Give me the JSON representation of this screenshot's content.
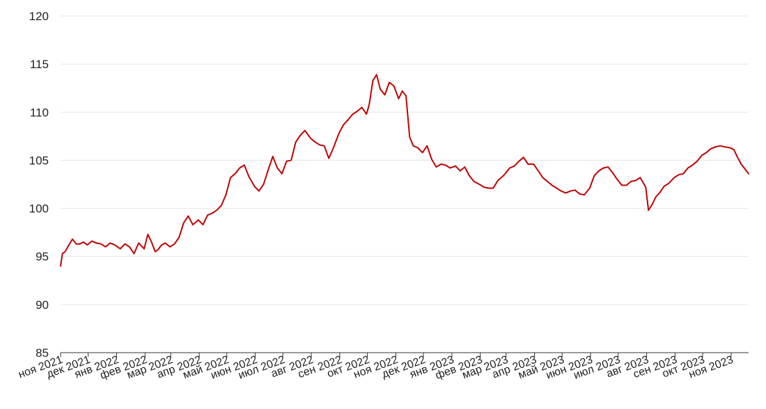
{
  "chart_data": {
    "type": "line",
    "title": "",
    "xlabel": "",
    "ylabel": "",
    "ylim": [
      85,
      120
    ],
    "yticks": [
      85,
      90,
      95,
      100,
      105,
      110,
      115,
      120
    ],
    "grid": true,
    "legend": "none",
    "line_color": "#c00000",
    "x_tick_labels": [
      "ноя 2021",
      "дек 2021",
      "янв 2022",
      "фев 2022",
      "мар 2022",
      "апр 2022",
      "май 2022",
      "июн 2022",
      "июл 2022",
      "авг 2022",
      "сен 2022",
      "окт 2022",
      "ноя 2022",
      "дек 2022",
      "янв 2023",
      "фев 2023",
      "мар 2023",
      "апр 2023",
      "май 2023",
      "июн 2023",
      "июл 2023",
      "авг 2023",
      "сен 2023",
      "окт 2023",
      "ноя 2023"
    ],
    "x_start": "2021-11-01",
    "x_end": "2023-11-20",
    "series": [
      {
        "dates": [
          "2021-11-01",
          "2021-11-03",
          "2021-11-06",
          "2021-11-10",
          "2021-11-14",
          "2021-11-18",
          "2021-11-22",
          "2021-11-26",
          "2021-11-30",
          "2021-12-05",
          "2021-12-10",
          "2021-12-15",
          "2021-12-20",
          "2021-12-25",
          "2021-12-30",
          "2022-01-05",
          "2022-01-10",
          "2022-01-15",
          "2022-01-20",
          "2022-01-25",
          "2022-01-31",
          "2022-02-04",
          "2022-02-08",
          "2022-02-12",
          "2022-02-15",
          "2022-02-19",
          "2022-02-23",
          "2022-02-28",
          "2022-03-05",
          "2022-03-10",
          "2022-03-15",
          "2022-03-20",
          "2022-03-25",
          "2022-03-31",
          "2022-04-05",
          "2022-04-10",
          "2022-04-15",
          "2022-04-20",
          "2022-04-25",
          "2022-04-30",
          "2022-05-05",
          "2022-05-10",
          "2022-05-15",
          "2022-05-20",
          "2022-05-25",
          "2022-05-31",
          "2022-06-05",
          "2022-06-10",
          "2022-06-15",
          "2022-06-20",
          "2022-06-25",
          "2022-06-30",
          "2022-07-05",
          "2022-07-10",
          "2022-07-15",
          "2022-07-20",
          "2022-07-25",
          "2022-07-31",
          "2022-08-05",
          "2022-08-10",
          "2022-08-15",
          "2022-08-20",
          "2022-08-25",
          "2022-08-31",
          "2022-09-05",
          "2022-09-10",
          "2022-09-15",
          "2022-09-20",
          "2022-09-25",
          "2022-09-30",
          "2022-10-03",
          "2022-10-07",
          "2022-10-11",
          "2022-10-15",
          "2022-10-20",
          "2022-10-25",
          "2022-10-30",
          "2022-11-04",
          "2022-11-08",
          "2022-11-12",
          "2022-11-16",
          "2022-11-20",
          "2022-11-25",
          "2022-11-30",
          "2022-12-05",
          "2022-12-10",
          "2022-12-15",
          "2022-12-20",
          "2022-12-25",
          "2022-12-30",
          "2023-01-05",
          "2023-01-10",
          "2023-01-15",
          "2023-01-20",
          "2023-01-25",
          "2023-01-31",
          "2023-02-05",
          "2023-02-10",
          "2023-02-15",
          "2023-02-20",
          "2023-02-25",
          "2023-02-28",
          "2023-03-05",
          "2023-03-10",
          "2023-03-15",
          "2023-03-20",
          "2023-03-25",
          "2023-03-31",
          "2023-04-05",
          "2023-04-10",
          "2023-04-15",
          "2023-04-20",
          "2023-04-25",
          "2023-04-30",
          "2023-05-05",
          "2023-05-10",
          "2023-05-15",
          "2023-05-20",
          "2023-05-25",
          "2023-05-31",
          "2023-06-05",
          "2023-06-10",
          "2023-06-15",
          "2023-06-20",
          "2023-06-25",
          "2023-06-30",
          "2023-07-05",
          "2023-07-10",
          "2023-07-15",
          "2023-07-20",
          "2023-07-25",
          "2023-07-31",
          "2023-08-03",
          "2023-08-07",
          "2023-08-11",
          "2023-08-15",
          "2023-08-20",
          "2023-08-25",
          "2023-08-31",
          "2023-09-05",
          "2023-09-10",
          "2023-09-15",
          "2023-09-20",
          "2023-09-25",
          "2023-09-30",
          "2023-10-05",
          "2023-10-10",
          "2023-10-15",
          "2023-10-20",
          "2023-10-25",
          "2023-10-31",
          "2023-11-04",
          "2023-11-08",
          "2023-11-12",
          "2023-11-16",
          "2023-11-20"
        ],
        "values": [
          94.0,
          95.3,
          95.5,
          96.2,
          96.8,
          96.3,
          96.3,
          96.5,
          96.2,
          96.6,
          96.4,
          96.3,
          96.0,
          96.4,
          96.2,
          95.8,
          96.3,
          96.0,
          95.3,
          96.4,
          95.8,
          97.3,
          96.5,
          95.5,
          95.7,
          96.2,
          96.4,
          96.0,
          96.3,
          97.0,
          98.5,
          99.2,
          98.3,
          98.8,
          98.3,
          99.3,
          99.5,
          99.8,
          100.3,
          101.4,
          103.2,
          103.6,
          104.2,
          104.5,
          103.3,
          102.3,
          101.8,
          102.5,
          104.0,
          105.4,
          104.2,
          103.6,
          104.9,
          105.0,
          106.9,
          107.6,
          108.1,
          107.3,
          106.9,
          106.6,
          106.5,
          105.2,
          106.3,
          107.8,
          108.7,
          109.2,
          109.8,
          110.1,
          110.5,
          109.8,
          110.8,
          113.3,
          113.9,
          112.4,
          111.8,
          113.1,
          112.7,
          111.4,
          112.2,
          111.7,
          107.4,
          106.5,
          106.3,
          105.8,
          106.5,
          105.1,
          104.3,
          104.6,
          104.5,
          104.2,
          104.4,
          103.9,
          104.3,
          103.4,
          102.8,
          102.5,
          102.2,
          102.1,
          102.1,
          102.9,
          103.3,
          103.6,
          104.2,
          104.4,
          104.9,
          105.3,
          104.6,
          104.6,
          103.9,
          103.2,
          102.8,
          102.4,
          102.1,
          101.8,
          101.6,
          101.8,
          101.9,
          101.5,
          101.4,
          102.1,
          103.4,
          103.9,
          104.2,
          104.3,
          103.7,
          103.0,
          102.4,
          102.4,
          102.8,
          102.9,
          103.2,
          102.2,
          99.8,
          100.4,
          101.2,
          101.6,
          102.3,
          102.6,
          103.2,
          103.5,
          103.6,
          104.2,
          104.5,
          104.9,
          105.5,
          105.8,
          106.2,
          106.4,
          106.5,
          106.4,
          106.3,
          106.1,
          105.3,
          104.6,
          104.1,
          103.6
        ]
      }
    ]
  }
}
